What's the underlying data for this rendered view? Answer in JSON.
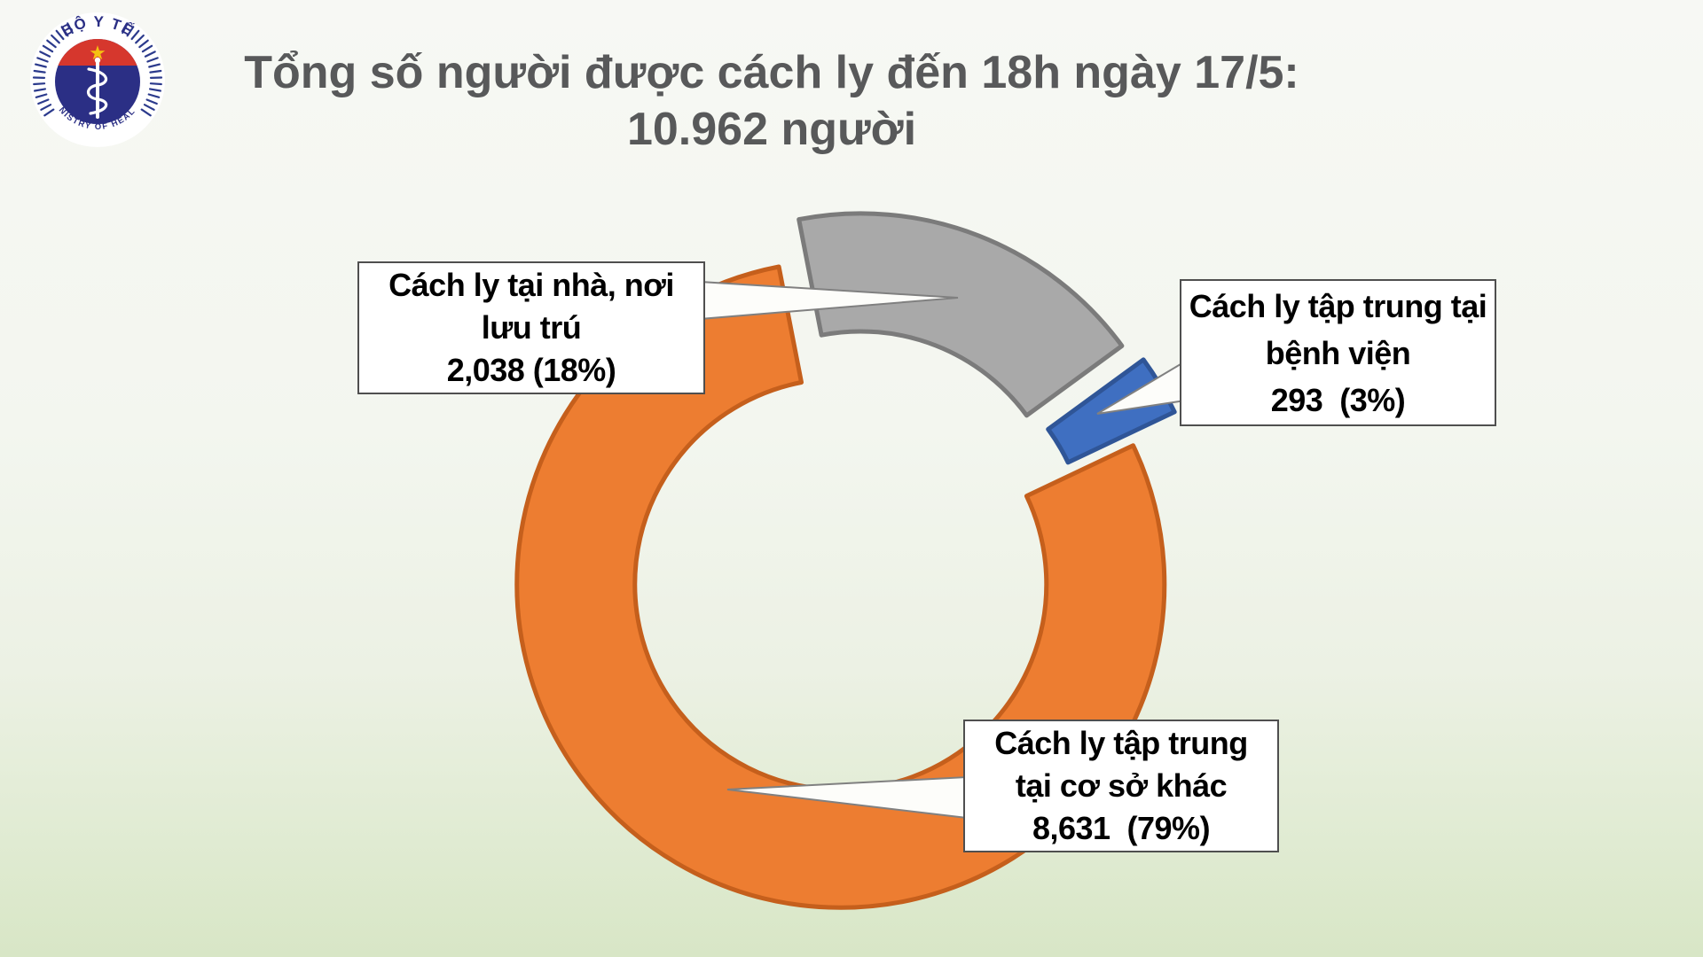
{
  "header": {
    "title_line1": "Tổng số người được cách ly đến 18h ngày 17/5:",
    "title_line2": "10.962 người",
    "title_color": "#58595a"
  },
  "logo": {
    "top_text": "BỘ Y TẾ",
    "bottom_text": "MINISTRY OF HEALTH",
    "colors": {
      "navy": "#2b2f85",
      "red": "#d6372d",
      "star": "#f5c211",
      "rays": "#2b3a8c",
      "staff": "#ffffff"
    }
  },
  "chart_data": {
    "type": "pie",
    "subtype": "doughnut-exploded-with-callouts",
    "title": "Tổng số người được cách ly đến 18h ngày 17/5: 10.962 người",
    "total_value": 10962,
    "total_label": "10.962 người",
    "hole_ratio": 0.63,
    "start_angle_deg": -11,
    "legend_position": "callout-boxes",
    "categories": [
      "Cách ly tại nhà, nơi lưu trú",
      "Cách ly tập trung tại bệnh viện",
      "Cách ly tập trung tại cơ sở khác"
    ],
    "values": [
      2038,
      293,
      8631
    ],
    "slices": [
      {
        "label": "Cách ly tại nhà, nơi lưu trú",
        "value": 2038,
        "pct": 18,
        "display": "2,038 (18%)",
        "color": "#a9a9a9",
        "border": "#7b7b7b"
      },
      {
        "label": "Cách ly tập trung tại bệnh viện",
        "value": 293,
        "pct": 3,
        "display": "293  (3%)",
        "color": "#3f6fc1",
        "border": "#2f5597"
      },
      {
        "label": "Cách ly tập trung tại cơ sở khác",
        "value": 8631,
        "pct": 79,
        "display": "8,631  (79%)",
        "color": "#ed7d31",
        "border": "#c55f1c"
      }
    ]
  },
  "callouts": [
    {
      "target": "home",
      "lines": [
        "Cách ly tại nhà, nơi",
        "lưu trú",
        "2,038 (18%)"
      ]
    },
    {
      "target": "hospital",
      "lines": [
        "Cách ly tập trung tại",
        "bệnh viện",
        "293  (3%)"
      ]
    },
    {
      "target": "other",
      "lines": [
        "Cách ly tập trung",
        "tại cơ sở khác",
        "8,631  (79%)"
      ]
    }
  ]
}
